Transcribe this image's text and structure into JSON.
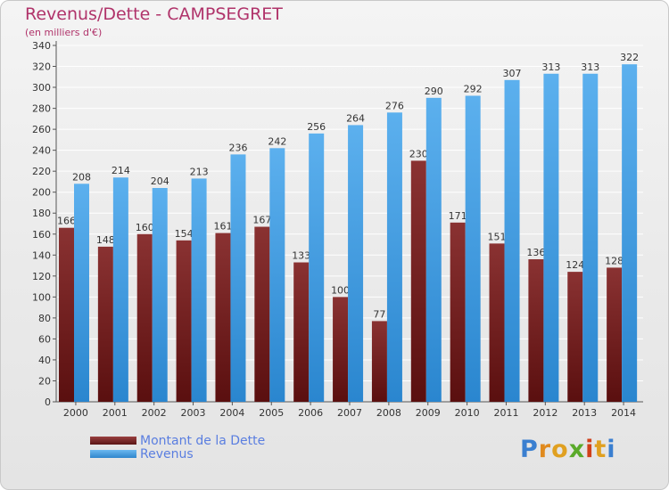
{
  "header": {
    "title": "Revenus/Dette - CAMPSEGRET",
    "subtitle": "(en milliers d'€)"
  },
  "legend": {
    "items": [
      {
        "label": "Montant de la Dette",
        "color": "#7a2a2a"
      },
      {
        "label": "Revenus",
        "color": "#4aa3e6"
      }
    ]
  },
  "logo": {
    "text": "Proxiti"
  },
  "chart_data": {
    "type": "bar",
    "categories": [
      "2000",
      "2001",
      "2002",
      "2003",
      "2004",
      "2005",
      "2006",
      "2007",
      "2008",
      "2009",
      "2010",
      "2011",
      "2012",
      "2013",
      "2014"
    ],
    "series": [
      {
        "name": "Montant de la Dette",
        "color": "#7a2a2a",
        "values": [
          166,
          148,
          160,
          154,
          161,
          167,
          133,
          100,
          77,
          230,
          171,
          151,
          136,
          124,
          128
        ]
      },
      {
        "name": "Revenus",
        "color": "#4aa3e6",
        "values": [
          208,
          214,
          204,
          213,
          236,
          242,
          256,
          264,
          276,
          290,
          292,
          307,
          313,
          313,
          322
        ]
      }
    ],
    "ylim": [
      0,
      340
    ],
    "ytick_step": 20,
    "grid": true
  }
}
